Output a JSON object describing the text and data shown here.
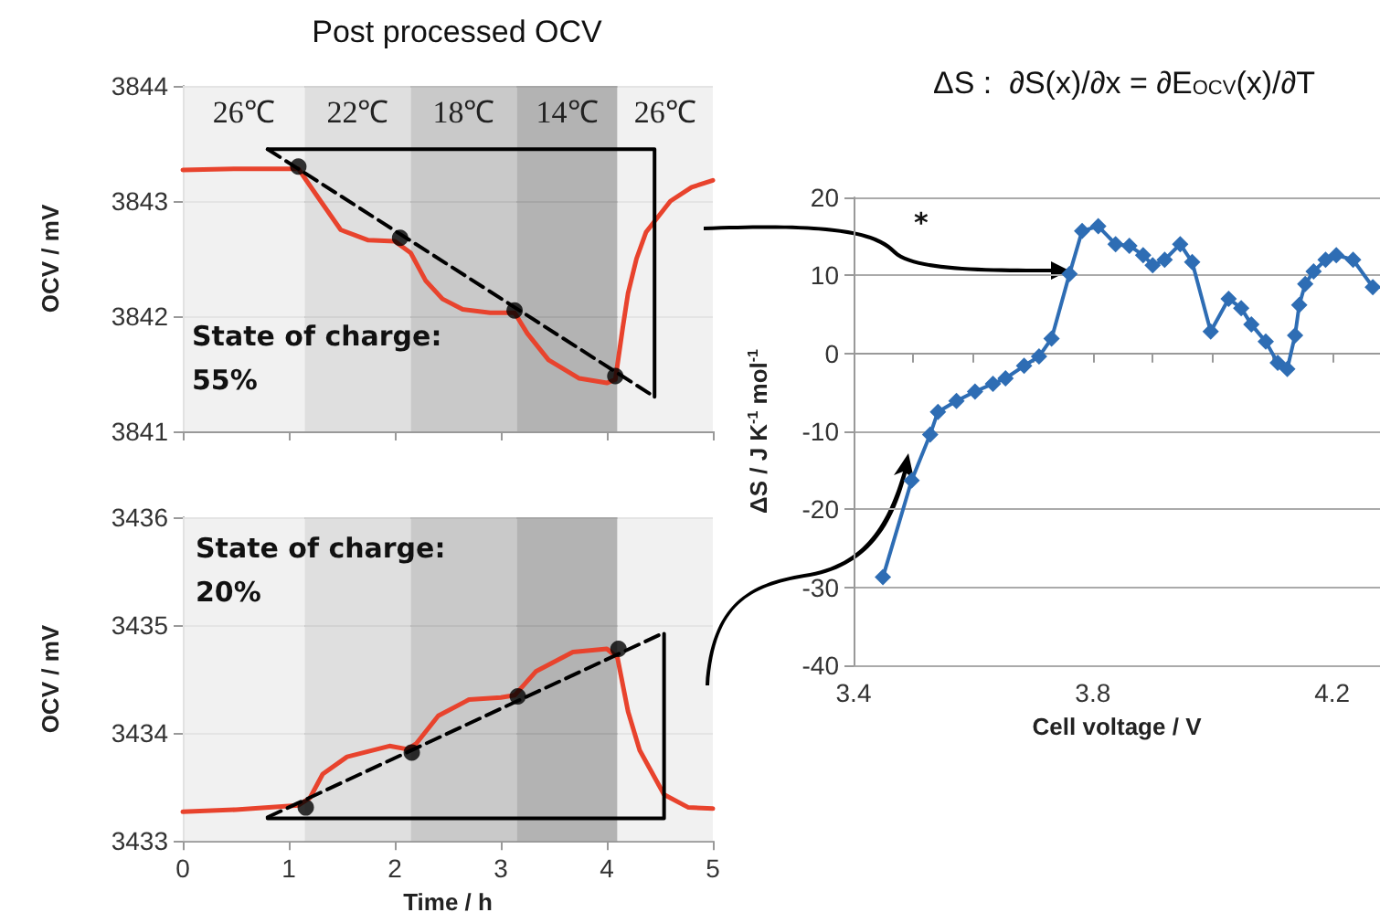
{
  "chart_data": [
    {
      "type": "line",
      "title": "Post processed OCV",
      "ylabel": "OCV / mV",
      "xlim": [
        0,
        5
      ],
      "xticks": [
        0,
        1,
        2,
        3,
        4,
        5
      ],
      "ylim": [
        3841,
        3844
      ],
      "yticks": [
        3841,
        3842,
        3843,
        3844
      ],
      "tick_labels": "y",
      "grid": "y",
      "bands": [
        {
          "axis": "x",
          "from": 0,
          "to": 1.15,
          "label": "26℃",
          "color": "#eeeeee"
        },
        {
          "axis": "x",
          "from": 1.15,
          "to": 2.15,
          "label": "22℃",
          "color": "#d9d9d9"
        },
        {
          "axis": "x",
          "from": 2.15,
          "to": 3.15,
          "label": "18℃",
          "color": "#bfbfbf"
        },
        {
          "axis": "x",
          "from": 3.15,
          "to": 4.1,
          "label": "14℃",
          "color": "#a6a6a6"
        },
        {
          "axis": "x",
          "from": 4.1,
          "to": 5,
          "label": "26℃",
          "color": "#eeeeee"
        }
      ],
      "annotations": [
        "State of charge:\n55%"
      ],
      "series": [
        {
          "color": "#e8432d",
          "marker": "none",
          "x": [
            0,
            0.5,
            1.09,
            1.3,
            1.49,
            1.75,
            2.0,
            2.15,
            2.29,
            2.45,
            2.64,
            2.9,
            3.13,
            3.25,
            3.45,
            3.74,
            4.0,
            4.08,
            4.15,
            4.2,
            4.28,
            4.37,
            4.6,
            4.8,
            5
          ],
          "values": [
            3843.27,
            3843.28,
            3843.28,
            3843.0,
            3842.75,
            3842.66,
            3842.65,
            3842.55,
            3842.31,
            3842.15,
            3842.06,
            3842.03,
            3842.03,
            3841.85,
            3841.62,
            3841.46,
            3841.42,
            3841.45,
            3841.9,
            3842.2,
            3842.5,
            3842.73,
            3843.0,
            3843.12,
            3843.18
          ]
        },
        {
          "color": "#000000",
          "marker": "none",
          "line_style": "dashed",
          "x": [
            0.8,
            4.45
          ],
          "values": [
            3843.45,
            3841.3
          ]
        },
        {
          "color": "#000000",
          "marker": "none",
          "x": [
            0.8,
            4.45,
            4.45
          ],
          "values": [
            3843.45,
            3843.45,
            3841.3
          ]
        },
        {
          "type": "scatter",
          "color": "#000000",
          "marker": "circle",
          "x": [
            1.09,
            2.05,
            3.13,
            4.08
          ],
          "values": [
            3843.3,
            3842.68,
            3842.05,
            3841.48
          ]
        }
      ]
    },
    {
      "type": "line",
      "xlabel": "Time / h",
      "ylabel": "OCV / mV",
      "xlim": [
        0,
        5
      ],
      "xticks": [
        0,
        1,
        2,
        3,
        4,
        5
      ],
      "ylim": [
        3433,
        3436
      ],
      "yticks": [
        3433,
        3434,
        3435,
        3436
      ],
      "grid": "y",
      "bands": [
        {
          "axis": "x",
          "from": 0,
          "to": 1.15,
          "color": "#eeeeee"
        },
        {
          "axis": "x",
          "from": 1.15,
          "to": 2.15,
          "color": "#d9d9d9"
        },
        {
          "axis": "x",
          "from": 2.15,
          "to": 3.15,
          "color": "#bfbfbf"
        },
        {
          "axis": "x",
          "from": 3.15,
          "to": 4.1,
          "color": "#a6a6a6"
        },
        {
          "axis": "x",
          "from": 4.1,
          "to": 5,
          "color": "#eeeeee"
        }
      ],
      "annotations": [
        "State of charge:\n20%"
      ],
      "series": [
        {
          "color": "#e8432d",
          "marker": "none",
          "x": [
            0,
            0.5,
            1.09,
            1.2,
            1.32,
            1.55,
            1.95,
            2.12,
            2.2,
            2.41,
            2.7,
            3.0,
            3.13,
            3.33,
            3.68,
            4.0,
            4.1,
            4.2,
            4.31,
            4.54,
            4.77,
            5
          ],
          "values": [
            3433.27,
            3433.29,
            3433.33,
            3433.4,
            3433.62,
            3433.78,
            3433.88,
            3433.85,
            3433.9,
            3434.16,
            3434.31,
            3434.33,
            3434.35,
            3434.57,
            3434.75,
            3434.78,
            3434.7,
            3434.2,
            3433.84,
            3433.43,
            3433.31,
            3433.3
          ]
        },
        {
          "color": "#000000",
          "marker": "none",
          "line_style": "dashed",
          "x": [
            0.8,
            4.54
          ],
          "values": [
            3433.22,
            3434.93
          ]
        },
        {
          "color": "#000000",
          "marker": "none",
          "x": [
            0.8,
            4.54,
            4.54
          ],
          "values": [
            3433.21,
            3433.21,
            3434.92
          ]
        },
        {
          "type": "scatter",
          "color": "#000000",
          "marker": "circle",
          "x": [
            1.16,
            2.16,
            3.16,
            4.11
          ],
          "values": [
            3433.31,
            3433.82,
            3434.34,
            3434.78
          ]
        }
      ]
    },
    {
      "type": "line",
      "title": "ΔS :  ∂S(x)/∂x = ∂E$_{OCV}$(x)/∂T",
      "xlabel": "Cell voltage / V",
      "ylabel": "ΔS / J K$^{-1}$ mol$^{-1}$",
      "xlim": [
        3.4,
        4.28
      ],
      "xticks": [
        3.4,
        {
          "value": 3.5,
          "label": null
        },
        {
          "value": 3.6,
          "label": null
        },
        {
          "value": 3.7,
          "label": null
        },
        3.8,
        {
          "value": 3.9,
          "label": null
        },
        {
          "value": 4.0,
          "label": null
        },
        {
          "value": 4.1,
          "label": null
        },
        4.2
      ],
      "ylim": [
        -40,
        20
      ],
      "yticks": [
        -40,
        -30,
        -20,
        -10,
        0,
        10,
        20
      ],
      "grid": "y",
      "annotations": [
        "*"
      ],
      "series": [
        {
          "color": "#2e6db4",
          "marker": "diamond",
          "x": [
            3.449,
            3.497,
            3.528,
            3.541,
            3.572,
            3.603,
            3.633,
            3.654,
            3.685,
            3.71,
            3.731,
            3.761,
            3.782,
            3.809,
            3.838,
            3.861,
            3.884,
            3.9,
            3.92,
            3.946,
            3.966,
            3.997,
            4.027,
            4.048,
            4.065,
            4.089,
            4.109,
            4.125,
            4.138,
            4.145,
            4.155,
            4.169,
            4.189,
            4.207,
            4.235,
            4.268
          ],
          "values": [
            -28.7,
            -16.3,
            -10.4,
            -7.5,
            -6.1,
            -4.9,
            -3.9,
            -3.2,
            -1.6,
            -0.4,
            1.9,
            10.2,
            15.7,
            16.3,
            14.0,
            13.8,
            12.6,
            11.3,
            12.0,
            14.0,
            11.7,
            2.8,
            7.0,
            5.8,
            3.7,
            1.5,
            -1.2,
            -2.0,
            2.3,
            6.2,
            8.9,
            10.5,
            12.0,
            12.6,
            12.0,
            8.5
          ]
        }
      ]
    }
  ]
}
